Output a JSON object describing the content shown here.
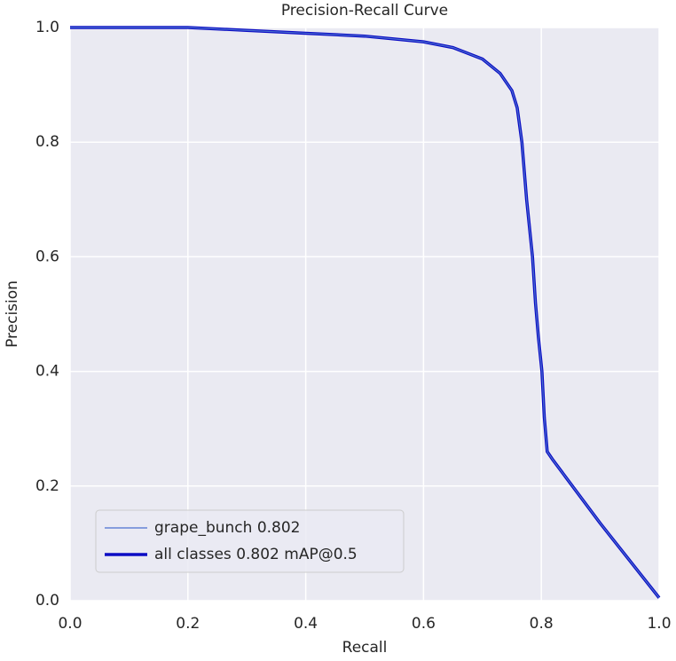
{
  "chart_data": {
    "type": "line",
    "title": "Precision-Recall Curve",
    "x_label": "Recall",
    "y_label": "Precision",
    "x": [
      0,
      0.2,
      0.3,
      0.4,
      0.5,
      0.6,
      0.65,
      0.7,
      0.73,
      0.75,
      0.759,
      0.767,
      0.775,
      0.785,
      0.79,
      0.795,
      0.801,
      0.805,
      0.81,
      0.82,
      0.9,
      1.0
    ],
    "series": [
      {
        "name": "grape_bunch 0.802",
        "color": "#4a6fd0",
        "line_width": 1.2,
        "values": [
          1.0,
          1.0,
          0.995,
          0.99,
          0.985,
          0.975,
          0.965,
          0.945,
          0.92,
          0.89,
          0.86,
          0.8,
          0.7,
          0.6,
          0.52,
          0.46,
          0.4,
          0.32,
          0.26,
          0.245,
          0.135,
          0.005
        ]
      },
      {
        "name": "all classes 0.802 mAP@0.5",
        "color": "#0c0cc4",
        "line_width": 3.5,
        "values": [
          1.0,
          1.0,
          0.995,
          0.99,
          0.985,
          0.975,
          0.965,
          0.945,
          0.92,
          0.89,
          0.86,
          0.8,
          0.7,
          0.6,
          0.52,
          0.46,
          0.4,
          0.32,
          0.26,
          0.245,
          0.135,
          0.005
        ]
      }
    ],
    "xlim": [
      0,
      1
    ],
    "ylim": [
      0,
      1
    ],
    "xticks": [
      {
        "value": 0,
        "label": "0.0"
      },
      0.2,
      0.4,
      0.6,
      0.8,
      {
        "value": 1,
        "label": "1.0"
      }
    ],
    "yticks": [
      {
        "value": 0,
        "label": "0.0"
      },
      0.2,
      0.4,
      0.6,
      0.8,
      {
        "value": 1,
        "label": "1.0"
      }
    ],
    "grid": true,
    "legend_position": "lower left"
  }
}
